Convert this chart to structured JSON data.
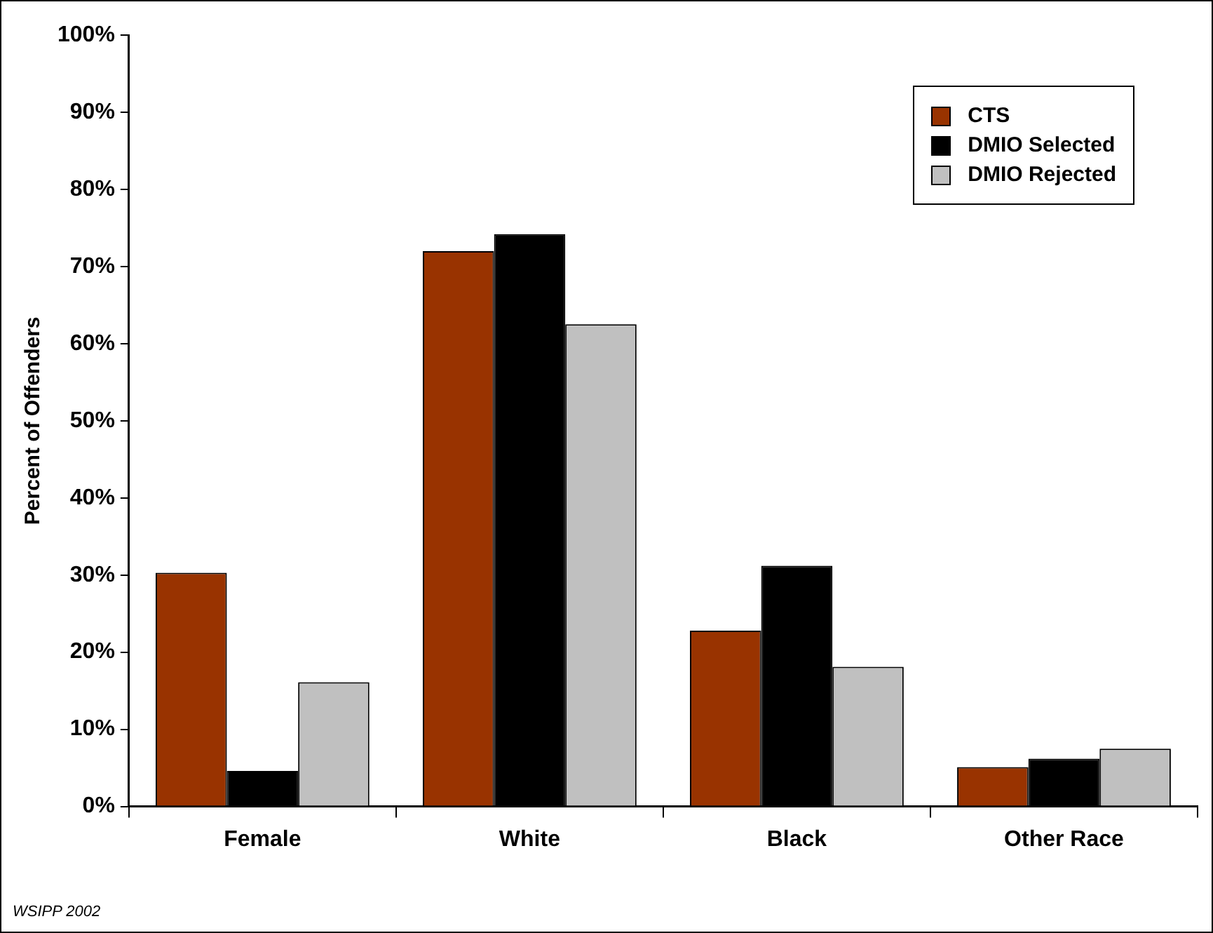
{
  "chart_data": {
    "type": "bar",
    "ylabel": "Percent of Offenders",
    "categories": [
      "Female",
      "White",
      "Black",
      "Other Race"
    ],
    "series": [
      {
        "name": "CTS",
        "color": "#993300",
        "values": [
          30.3,
          72.0,
          22.8,
          5.1
        ]
      },
      {
        "name": "DMIO Selected",
        "color": "#000000",
        "values": [
          4.6,
          74.2,
          31.2,
          6.2
        ]
      },
      {
        "name": "DMIO Rejected",
        "color": "#c0c0c0",
        "values": [
          16.1,
          62.5,
          18.1,
          7.5
        ]
      }
    ],
    "ylim": [
      0,
      100
    ],
    "yticks": [
      {
        "value": 0,
        "label": "0%"
      },
      {
        "value": 10,
        "label": "10%"
      },
      {
        "value": 20,
        "label": "20%"
      },
      {
        "value": 30,
        "label": "30%"
      },
      {
        "value": 40,
        "label": "40%"
      },
      {
        "value": 50,
        "label": "50%"
      },
      {
        "value": 60,
        "label": "60%"
      },
      {
        "value": 70,
        "label": "70%"
      },
      {
        "value": 80,
        "label": "80%"
      },
      {
        "value": 90,
        "label": "90%"
      },
      {
        "value": 100,
        "label": "100%"
      }
    ],
    "grid": false,
    "legend": "top right",
    "annotations": [
      "WSIPP 2002"
    ]
  }
}
